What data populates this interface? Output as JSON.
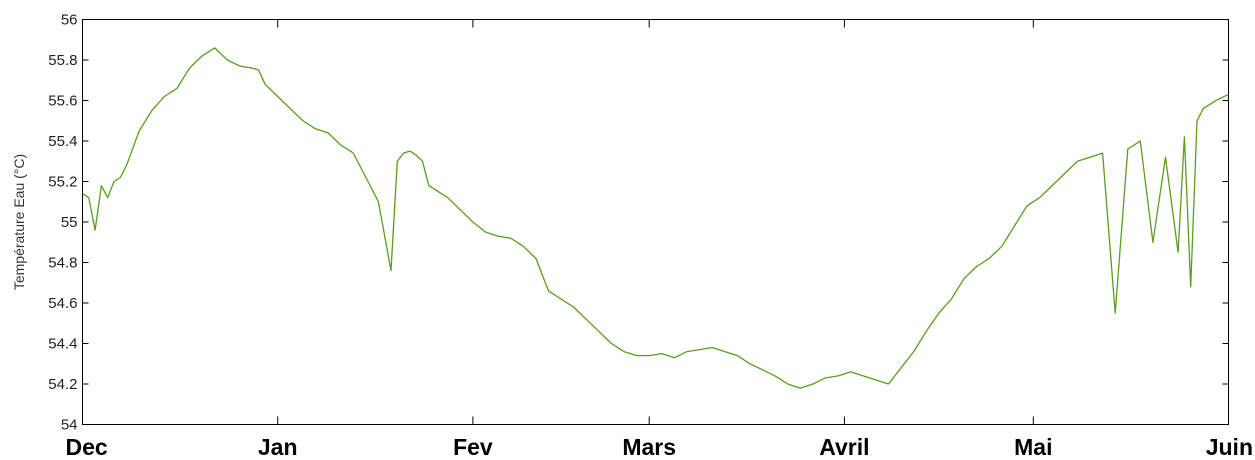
{
  "chart_data": {
    "type": "line",
    "title": "",
    "xlabel": "",
    "ylabel": "Température Eau (°C)",
    "ylim": [
      54,
      56
    ],
    "grid": false,
    "legend": "none",
    "y_ticks": [
      54,
      54.2,
      54.4,
      54.6,
      54.8,
      55,
      55.2,
      55.4,
      55.6,
      55.8,
      56
    ],
    "y_tick_labels": [
      "54",
      "54.2",
      "54.4",
      "54.6",
      "54.8",
      "55",
      "55.2",
      "55.4",
      "55.6",
      "55.8",
      "56"
    ],
    "x_tick_labels": [
      "Dec",
      "Jan",
      "Fev",
      "Mars",
      "Avril",
      "Mai",
      "Juin"
    ],
    "x_ticks": [
      "12-01",
      "01-01",
      "02-01",
      "03-01",
      "04-01",
      "05-01",
      "06-01"
    ],
    "series": [
      {
        "color": "#5a9e1e",
        "x": [
          "12-01",
          "12-02",
          "12-03",
          "12-04",
          "12-05",
          "12-06",
          "12-07",
          "12-08",
          "12-10",
          "12-12",
          "12-14",
          "12-16",
          "12-18",
          "12-20",
          "12-22",
          "12-24",
          "12-26",
          "12-28",
          "12-29",
          "12-30",
          "01-01",
          "01-03",
          "01-05",
          "01-07",
          "01-09",
          "01-11",
          "01-13",
          "01-15",
          "01-17",
          "01-19",
          "01-20",
          "01-21",
          "01-22",
          "01-23",
          "01-24",
          "01-25",
          "01-26",
          "01-28",
          "01-30",
          "02-01",
          "02-03",
          "02-05",
          "02-07",
          "02-09",
          "02-11",
          "02-13",
          "02-15",
          "02-17",
          "02-19",
          "02-21",
          "02-23",
          "02-25",
          "02-27",
          "03-01",
          "03-03",
          "03-05",
          "03-07",
          "03-09",
          "03-11",
          "03-13",
          "03-15",
          "03-17",
          "03-19",
          "03-21",
          "03-23",
          "03-25",
          "03-27",
          "03-29",
          "03-31",
          "04-02",
          "04-04",
          "04-06",
          "04-08",
          "04-10",
          "04-12",
          "04-14",
          "04-16",
          "04-18",
          "04-20",
          "04-22",
          "04-24",
          "04-26",
          "04-28",
          "04-30",
          "05-02",
          "05-04",
          "05-06",
          "05-08",
          "05-10",
          "05-12",
          "05-14",
          "05-16",
          "05-18",
          "05-20",
          "05-22",
          "05-24",
          "05-25",
          "05-26",
          "05-27",
          "05-28",
          "05-29",
          "05-30",
          "06-01"
        ],
        "values": [
          55.14,
          55.12,
          54.96,
          55.18,
          55.12,
          55.2,
          55.22,
          55.28,
          55.45,
          55.55,
          55.62,
          55.66,
          55.76,
          55.82,
          55.86,
          55.8,
          55.77,
          55.76,
          55.75,
          55.68,
          55.62,
          55.56,
          55.5,
          55.46,
          55.44,
          55.38,
          55.34,
          55.22,
          55.1,
          54.76,
          55.3,
          55.34,
          55.35,
          55.33,
          55.3,
          55.18,
          55.16,
          55.12,
          55.06,
          55.0,
          54.95,
          54.93,
          54.92,
          54.88,
          54.82,
          54.66,
          54.62,
          54.58,
          54.52,
          54.46,
          54.4,
          54.36,
          54.34,
          54.34,
          54.35,
          54.33,
          54.36,
          54.37,
          54.38,
          54.36,
          54.34,
          54.3,
          54.27,
          54.24,
          54.2,
          54.18,
          54.2,
          54.23,
          54.24,
          54.26,
          54.24,
          54.22,
          54.2,
          54.28,
          54.36,
          54.46,
          54.55,
          54.62,
          54.72,
          54.78,
          54.82,
          54.88,
          54.98,
          55.08,
          55.12,
          55.18,
          55.24,
          55.3,
          55.32,
          55.34,
          54.55,
          55.36,
          55.4,
          54.9,
          55.32,
          54.85,
          55.42,
          54.68,
          55.5,
          55.56,
          55.58,
          55.6,
          55.63
        ]
      }
    ]
  }
}
